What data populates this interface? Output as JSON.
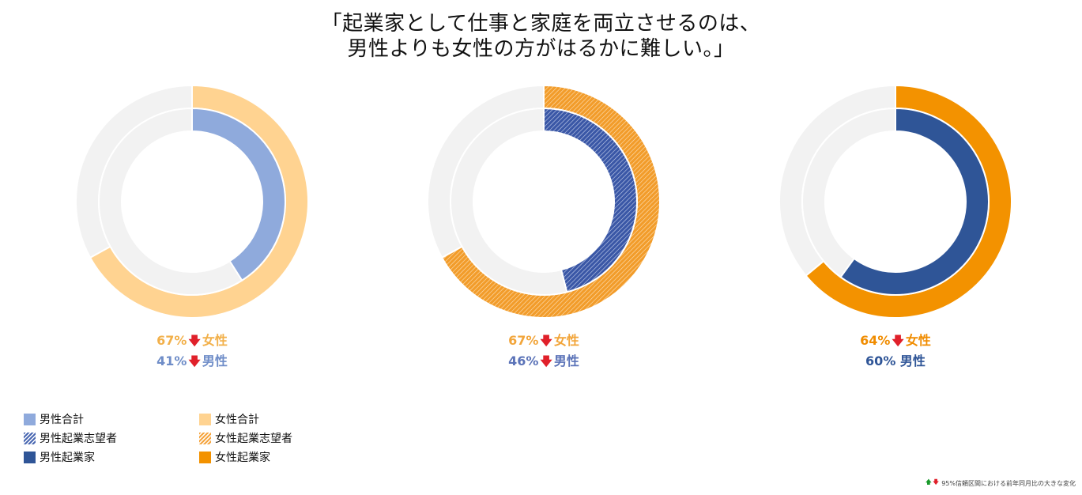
{
  "title": {
    "line1": "「起業家として仕事と家庭を両立させるのは、",
    "line2": "男性よりも女性の方がはるかに難しい。」"
  },
  "colors": {
    "background_ring": "#f2f2f2",
    "male_total": "#8faadc",
    "female_total": "#ffd391",
    "male_aspiring": "#4a68b2",
    "female_aspiring": "#f5a540",
    "male_entrepreneur": "#2f5597",
    "female_entrepreneur": "#f39200",
    "up_arrow": "#1a9a2c",
    "down_arrow": "#e0202a"
  },
  "chart_data": [
    {
      "type": "donut",
      "group": "合計",
      "series": [
        {
          "name": "女性合計",
          "ring": "outer",
          "value": 67,
          "label": "67%",
          "gender_label": "女性",
          "change": "down"
        },
        {
          "name": "男性合計",
          "ring": "inner",
          "value": 41,
          "label": "41%",
          "gender_label": "男性",
          "change": "down"
        }
      ]
    },
    {
      "type": "donut",
      "group": "起業志望者",
      "series": [
        {
          "name": "女性起業志望者",
          "ring": "outer",
          "value": 67,
          "label": "67%",
          "gender_label": "女性",
          "change": "down"
        },
        {
          "name": "男性起業志望者",
          "ring": "inner",
          "value": 46,
          "label": "46%",
          "gender_label": "男性",
          "change": "down"
        }
      ]
    },
    {
      "type": "donut",
      "group": "起業家",
      "series": [
        {
          "name": "女性起業家",
          "ring": "outer",
          "value": 64,
          "label": "64%",
          "gender_label": "女性",
          "change": "down"
        },
        {
          "name": "男性起業家",
          "ring": "inner",
          "value": 60,
          "label": "60%",
          "gender_label": "男性",
          "change": "none"
        }
      ]
    }
  ],
  "legend": {
    "items": [
      {
        "label": "男性合計",
        "color": "#8faadc",
        "pattern": "solid"
      },
      {
        "label": "女性合計",
        "color": "#ffd391",
        "pattern": "solid"
      },
      {
        "label": "男性起業志望者",
        "color": "#4a68b2",
        "pattern": "hatched"
      },
      {
        "label": "女性起業志望者",
        "color": "#f5a540",
        "pattern": "hatched"
      },
      {
        "label": "男性起業家",
        "color": "#2f5597",
        "pattern": "solid"
      },
      {
        "label": "女性起業家",
        "color": "#f39200",
        "pattern": "solid"
      }
    ]
  },
  "footnote": {
    "up_arrow": "🡅",
    "down_arrow": "🡇",
    "text": "95%信頼区間における前年同月比の大きな変化"
  }
}
